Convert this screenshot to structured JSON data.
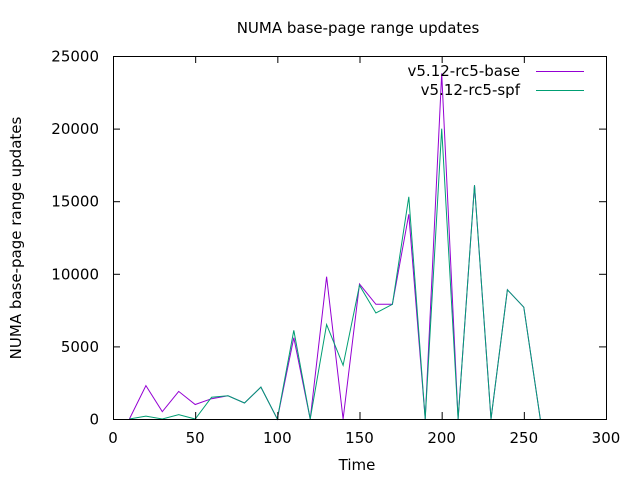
{
  "chart_data": {
    "type": "line",
    "title": "NUMA base-page range updates",
    "xlabel": "Time",
    "ylabel": "NUMA base-page range updates",
    "xlim": [
      0,
      300
    ],
    "ylim": [
      0,
      25000
    ],
    "xticks": [
      "0",
      "50",
      "100",
      "150",
      "200",
      "250",
      "300"
    ],
    "yticks": [
      "0",
      "5000",
      "10000",
      "15000",
      "20000",
      "25000"
    ],
    "grid": false,
    "legend": "top-right",
    "x": [
      10,
      20,
      30,
      40,
      50,
      60,
      70,
      80,
      90,
      100,
      110,
      120,
      130,
      140,
      150,
      160,
      170,
      180,
      190,
      200,
      210,
      220,
      230,
      240,
      250,
      260
    ],
    "series": [
      {
        "name": "v5.12-rc5-base",
        "color": "#9400d3",
        "values": [
          0,
          2300,
          500,
          1900,
          1000,
          1400,
          1600,
          1100,
          2200,
          0,
          5600,
          0,
          9800,
          0,
          9300,
          7900,
          7900,
          14100,
          0,
          23800,
          0,
          16100,
          0,
          8900,
          7700,
          0
        ]
      },
      {
        "name": "v5.12-rc5-spf",
        "color": "#009e73",
        "values": [
          0,
          200,
          0,
          300,
          0,
          1500,
          1600,
          1100,
          2200,
          0,
          6100,
          0,
          6500,
          3700,
          9200,
          7300,
          7900,
          15300,
          0,
          20000,
          0,
          16100,
          0,
          8900,
          7700,
          0
        ]
      }
    ]
  }
}
